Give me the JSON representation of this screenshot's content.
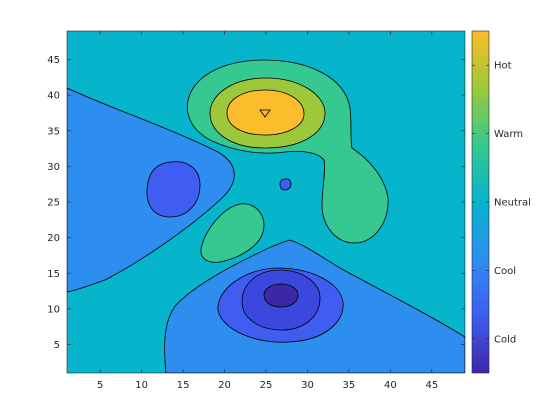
{
  "chart_data": {
    "type": "filled-contour",
    "title": "",
    "xlabel": "",
    "ylabel": "",
    "xlim": [
      1,
      49
    ],
    "ylim": [
      1,
      49
    ],
    "xticks": [
      5,
      10,
      15,
      20,
      25,
      30,
      35,
      40,
      45
    ],
    "yticks": [
      5,
      10,
      15,
      20,
      25,
      30,
      35,
      40,
      45
    ],
    "colormap": "parula",
    "colors": {
      "level_1": "#3e26a8",
      "level_2": "#3f5df1",
      "level_3": "#2d8ef0",
      "level_4": "#06b4cc",
      "level_5": "#35c890",
      "level_6": "#9dc83c",
      "level_7": "#fbbd2b",
      "contour_line": "#000000",
      "axis": "#262626"
    },
    "background_level": "level_4",
    "regions": [
      {
        "level": "level_3",
        "name": "cool basin (left)",
        "approx_center": [
          9,
          30
        ]
      },
      {
        "level": "level_2",
        "name": "cold pocket (left)",
        "approx_center": [
          14,
          27
        ]
      },
      {
        "level": "level_3",
        "name": "cool basin (bottom)",
        "approx_center": [
          30,
          11
        ]
      },
      {
        "level": "level_2",
        "name": "cold ring (bottom)",
        "approx_center": [
          27,
          12
        ]
      },
      {
        "level": "level_1",
        "name": "coldest minimum",
        "approx_center": [
          26.5,
          12.5
        ]
      },
      {
        "level": "level_5",
        "name": "neutral-warm lobe (top)",
        "approx_center": [
          27,
          36
        ]
      },
      {
        "level": "level_6",
        "name": "warm ring (top)",
        "approx_center": [
          25.5,
          37.5
        ]
      },
      {
        "level": "level_7",
        "name": "hot peak",
        "approx_center": [
          25,
          37.5
        ]
      },
      {
        "level": "level_5",
        "name": "neutral-warm lobe (left-middle)",
        "approx_center": [
          21,
          20
        ]
      },
      {
        "level": "level_2",
        "name": "small cold spot",
        "approx_center": [
          27.5,
          27.5
        ]
      }
    ],
    "colorbar": {
      "location": "right",
      "ticks": [
        "Cold",
        "Cool",
        "Neutral",
        "Warm",
        "Hot"
      ],
      "tick_values": [
        0.1,
        0.3,
        0.5,
        0.7,
        0.9
      ]
    }
  }
}
